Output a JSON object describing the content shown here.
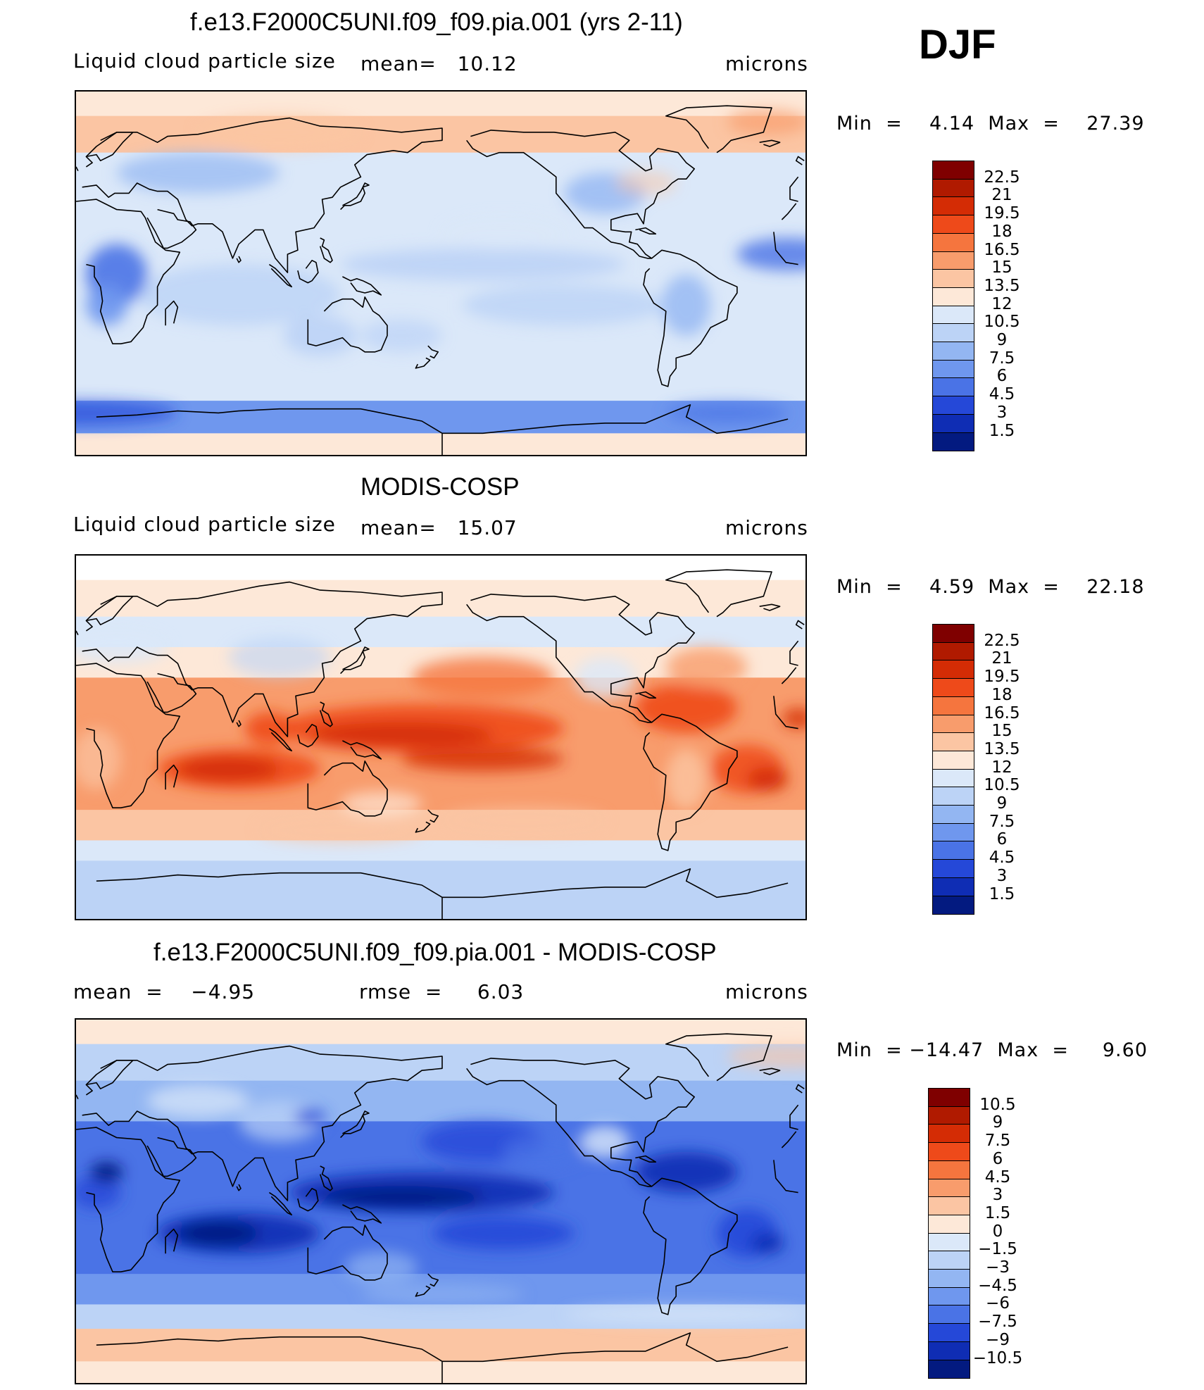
{
  "season": "DJF",
  "panels": [
    {
      "id": "model",
      "title": "f.e13.F2000C5UNI.f09_f09.pia.001 (yrs 2-11)",
      "left_label": "Liquid cloud particle size",
      "mid_label": "mean=   10.12",
      "right_label": "microns",
      "minmax": "Min  =    4.14  Max  =    27.39",
      "field": "model",
      "colorbar": "abs"
    },
    {
      "id": "obs",
      "title": "MODIS-COSP",
      "left_label": "Liquid cloud particle size",
      "mid_label": "mean=   15.07",
      "right_label": "microns",
      "minmax": "Min  =    4.59  Max  =    22.18",
      "field": "obs",
      "colorbar": "abs"
    },
    {
      "id": "diff",
      "title": "f.e13.F2000C5UNI.f09_f09.pia.001 - MODIS-COSP",
      "left_label": "mean  =    −4.95",
      "mid_label": "rmse  =     6.03",
      "right_label": "microns",
      "minmax": "Min  = −14.47  Max  =     9.60",
      "field": "diff",
      "colorbar": "diff"
    }
  ],
  "colorbars": {
    "abs": {
      "labels": [
        "22.5",
        "21",
        "19.5",
        "18",
        "16.5",
        "15",
        "13.5",
        "12",
        "10.5",
        "9",
        "7.5",
        "6",
        "4.5",
        "3",
        "1.5"
      ],
      "colors": [
        "#7f0000",
        "#b01a00",
        "#d42c05",
        "#ee4a1a",
        "#f5753e",
        "#f89c6c",
        "#fbc5a3",
        "#fde8d8",
        "#dbe8f9",
        "#bcd3f6",
        "#93b6f2",
        "#6f97ee",
        "#4a73e6",
        "#2548d8",
        "#0f2db4",
        "#031a80"
      ]
    },
    "diff": {
      "labels": [
        "10.5",
        "9",
        "7.5",
        "6",
        "4.5",
        "3",
        "1.5",
        "0",
        "−1.5",
        "−3",
        "−4.5",
        "−6",
        "−7.5",
        "−9",
        "−10.5"
      ],
      "colors": [
        "#7f0000",
        "#b01a00",
        "#d42c05",
        "#ee4a1a",
        "#f5753e",
        "#f89c6c",
        "#fbc5a3",
        "#fde8d8",
        "#dbe8f9",
        "#bcd3f6",
        "#93b6f2",
        "#6f97ee",
        "#4a73e6",
        "#2548d8",
        "#0f2db4",
        "#031a80"
      ]
    }
  }
}
